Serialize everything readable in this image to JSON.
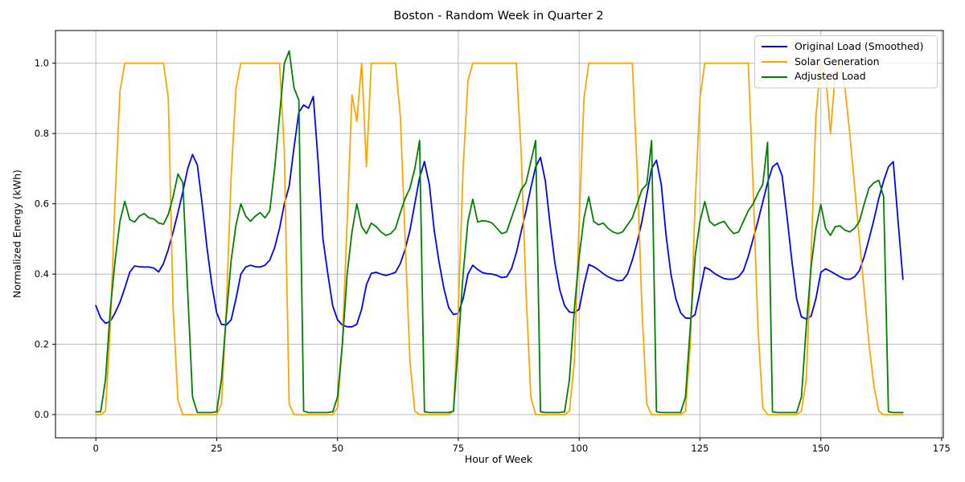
{
  "title": "Boston - Random Week in Quarter 2",
  "colors": {
    "background": "#ffffff",
    "grid": "#b0b0b0",
    "spine": "#000000",
    "tick_text": "#000000",
    "original_load": "#0000ff",
    "solar_generation": "#ffa500",
    "adjusted_load": "#008000"
  },
  "chart_data": {
    "type": "line",
    "title": "Boston - Random Week in Quarter 2",
    "xlabel": "Hour of Week",
    "ylabel": "Normalized Energy (kWh)",
    "legend_position": "upper right",
    "grid": true,
    "x_start": 0,
    "x_step": 1,
    "x_end": 167,
    "xlim": [
      -8.35,
      175.35
    ],
    "ylim": [
      -0.066,
      1.093
    ],
    "xticks": [
      0,
      25,
      50,
      75,
      100,
      125,
      150,
      175
    ],
    "xtick_labels": [
      "0",
      "25",
      "50",
      "75",
      "100",
      "125",
      "150",
      "175"
    ],
    "yticks": [
      0.0,
      0.2,
      0.4,
      0.6,
      0.8,
      1.0
    ],
    "ytick_labels": [
      "0.0",
      "0.2",
      "0.4",
      "0.6",
      "0.8",
      "1.0"
    ],
    "series": [
      {
        "name": "Original Load (Smoothed)",
        "color": "#0000ff",
        "values": [
          0.31,
          0.275,
          0.26,
          0.265,
          0.29,
          0.32,
          0.36,
          0.405,
          0.423,
          0.421,
          0.42,
          0.42,
          0.417,
          0.406,
          0.43,
          0.47,
          0.52,
          0.575,
          0.635,
          0.7,
          0.74,
          0.71,
          0.6,
          0.475,
          0.37,
          0.29,
          0.257,
          0.255,
          0.27,
          0.33,
          0.4,
          0.42,
          0.425,
          0.421,
          0.42,
          0.425,
          0.44,
          0.475,
          0.53,
          0.6,
          0.65,
          0.76,
          0.86,
          0.881,
          0.872,
          0.905,
          0.72,
          0.5,
          0.4,
          0.31,
          0.27,
          0.255,
          0.25,
          0.25,
          0.257,
          0.3,
          0.37,
          0.402,
          0.405,
          0.4,
          0.396,
          0.4,
          0.405,
          0.43,
          0.47,
          0.525,
          0.6,
          0.675,
          0.72,
          0.655,
          0.525,
          0.435,
          0.36,
          0.305,
          0.285,
          0.288,
          0.33,
          0.4,
          0.425,
          0.413,
          0.404,
          0.401,
          0.4,
          0.396,
          0.39,
          0.392,
          0.415,
          0.46,
          0.52,
          0.58,
          0.645,
          0.705,
          0.732,
          0.665,
          0.54,
          0.43,
          0.355,
          0.31,
          0.292,
          0.29,
          0.3,
          0.37,
          0.427,
          0.421,
          0.412,
          0.401,
          0.392,
          0.386,
          0.381,
          0.382,
          0.4,
          0.44,
          0.49,
          0.55,
          0.625,
          0.7,
          0.724,
          0.655,
          0.51,
          0.4,
          0.33,
          0.29,
          0.275,
          0.274,
          0.285,
          0.35,
          0.419,
          0.413,
          0.402,
          0.394,
          0.387,
          0.385,
          0.386,
          0.392,
          0.41,
          0.45,
          0.5,
          0.55,
          0.605,
          0.66,
          0.705,
          0.716,
          0.68,
          0.565,
          0.44,
          0.33,
          0.278,
          0.272,
          0.28,
          0.33,
          0.405,
          0.415,
          0.408,
          0.4,
          0.392,
          0.386,
          0.385,
          0.392,
          0.41,
          0.45,
          0.5,
          0.555,
          0.615,
          0.665,
          0.705,
          0.72,
          0.55,
          0.385
        ]
      },
      {
        "name": "Solar Generation",
        "color": "#ffa500",
        "values": [
          0,
          0,
          0.01,
          0.25,
          0.62,
          0.92,
          1,
          1,
          1,
          1,
          1,
          1,
          1,
          1,
          1,
          0.9,
          0.3,
          0.04,
          0,
          0,
          0,
          0,
          0,
          0,
          0,
          0,
          0.03,
          0.3,
          0.68,
          0.93,
          1,
          1,
          1,
          1,
          1,
          1,
          1,
          1,
          1,
          0.75,
          0.03,
          0,
          0,
          0,
          0,
          0,
          0,
          0,
          0,
          0,
          0.02,
          0.2,
          0.55,
          0.91,
          0.835,
          1,
          0.705,
          1,
          1,
          1,
          1,
          1,
          1,
          0.85,
          0.5,
          0.15,
          0.01,
          0,
          0,
          0,
          0,
          0,
          0,
          0,
          0.01,
          0.3,
          0.7,
          0.95,
          1,
          1,
          1,
          1,
          1,
          1,
          1,
          1,
          1,
          1,
          0.75,
          0.35,
          0.05,
          0,
          0,
          0,
          0,
          0,
          0,
          0,
          0.01,
          0.15,
          0.55,
          0.9,
          1,
          1,
          1,
          1,
          1,
          1,
          1,
          1,
          1,
          1,
          0.7,
          0.3,
          0.03,
          0,
          0,
          0,
          0,
          0,
          0,
          0,
          0.01,
          0.2,
          0.6,
          0.9,
          1,
          1,
          1,
          1,
          1,
          1,
          1,
          1,
          1,
          1,
          0.65,
          0.25,
          0.02,
          0,
          0,
          0,
          0,
          0,
          0,
          0,
          0.01,
          0.1,
          0.45,
          0.85,
          1,
          0.97,
          0.8,
          0.97,
          1,
          0.93,
          0.8,
          0.65,
          0.5,
          0.35,
          0.2,
          0.08,
          0.01,
          0,
          0,
          0,
          0,
          0
        ]
      },
      {
        "name": "Adjusted Load",
        "color": "#008000",
        "values": [
          0.008,
          0.008,
          0.1,
          0.3,
          0.44,
          0.55,
          0.607,
          0.555,
          0.548,
          0.565,
          0.572,
          0.56,
          0.557,
          0.545,
          0.542,
          0.57,
          0.62,
          0.685,
          0.66,
          0.35,
          0.05,
          0.006,
          0.006,
          0.006,
          0.006,
          0.008,
          0.1,
          0.28,
          0.44,
          0.54,
          0.6,
          0.565,
          0.55,
          0.565,
          0.575,
          0.56,
          0.58,
          0.7,
          0.85,
          1.0,
          1.035,
          0.93,
          0.895,
          0.01,
          0.006,
          0.006,
          0.006,
          0.006,
          0.006,
          0.008,
          0.05,
          0.2,
          0.4,
          0.52,
          0.6,
          0.535,
          0.515,
          0.545,
          0.535,
          0.52,
          0.51,
          0.515,
          0.53,
          0.575,
          0.615,
          0.645,
          0.7,
          0.78,
          0.008,
          0.006,
          0.006,
          0.006,
          0.006,
          0.006,
          0.01,
          0.2,
          0.4,
          0.55,
          0.613,
          0.548,
          0.552,
          0.55,
          0.545,
          0.53,
          0.515,
          0.52,
          0.56,
          0.6,
          0.64,
          0.66,
          0.72,
          0.78,
          0.008,
          0.006,
          0.006,
          0.006,
          0.006,
          0.008,
          0.1,
          0.3,
          0.45,
          0.56,
          0.62,
          0.55,
          0.54,
          0.545,
          0.53,
          0.52,
          0.515,
          0.52,
          0.54,
          0.56,
          0.6,
          0.64,
          0.655,
          0.78,
          0.008,
          0.006,
          0.006,
          0.006,
          0.006,
          0.006,
          0.05,
          0.25,
          0.45,
          0.55,
          0.606,
          0.55,
          0.538,
          0.545,
          0.55,
          0.53,
          0.515,
          0.52,
          0.55,
          0.58,
          0.6,
          0.63,
          0.655,
          0.775,
          0.008,
          0.006,
          0.006,
          0.006,
          0.006,
          0.006,
          0.05,
          0.25,
          0.42,
          0.53,
          0.598,
          0.53,
          0.51,
          0.535,
          0.537,
          0.525,
          0.52,
          0.53,
          0.55,
          0.6,
          0.645,
          0.66,
          0.667,
          0.62,
          0.008,
          0.006,
          0.006,
          0.006
        ]
      }
    ]
  }
}
